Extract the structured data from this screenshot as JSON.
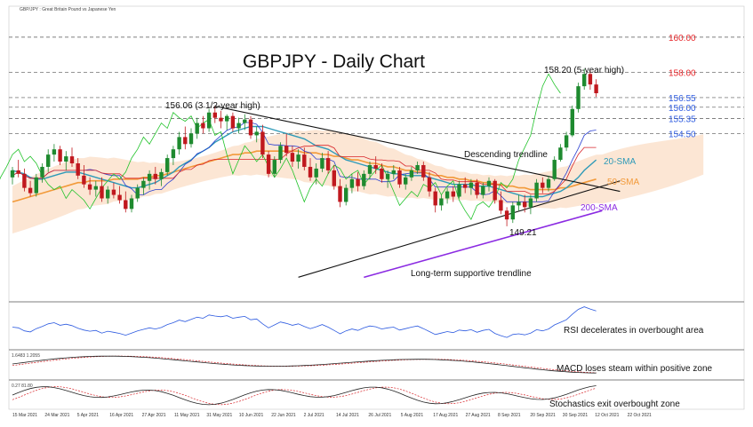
{
  "header": {
    "source_label": "GBP/JPY : Great Britain Pound vs Japanese Yen"
  },
  "chart_data": {
    "type": "candlestick",
    "title": "GBPJPY - Daily Chart",
    "ylim": [
      145.0,
      160.6
    ],
    "x": [
      "15 Mar 2021",
      "24 Mar 2021",
      "5 Apr 2021",
      "16 Apr 2021",
      "27 Apr 2021",
      "11 May 2021",
      "31 May 2021",
      "10 Jun 2021",
      "22 Jun 2021",
      "2 Jul 2021",
      "14 Jul 2021",
      "26 Jul 2021",
      "5 Aug 2021",
      "17 Aug 2021",
      "27 Aug 2021",
      "8 Sep 2021",
      "20 Sep 2021",
      "30 Sep 2021",
      "12 Oct 2021",
      "22 Oct 2021"
    ],
    "levels": [
      {
        "value": 160.0,
        "label": "160.00",
        "color": "#e8262a"
      },
      {
        "value": 158.0,
        "label": "158.00",
        "color": "#e8262a"
      },
      {
        "value": 156.55,
        "label": "156.55",
        "color": "#2c5ae0"
      },
      {
        "value": 156.0,
        "label": "156.00",
        "color": "#2c5ae0"
      },
      {
        "value": 155.35,
        "label": "155.35",
        "color": "#2c5ae0"
      },
      {
        "value": 154.5,
        "label": "154.50",
        "color": "#2c5ae0"
      }
    ],
    "series": [
      {
        "name": "20-SMA",
        "color": "#2e9ab8"
      },
      {
        "name": "50-SMA",
        "color": "#f29a3a"
      },
      {
        "name": "200-SMA",
        "color": "#8b2be2"
      }
    ],
    "annotations": [
      {
        "text": "158.20 (5-year high)"
      },
      {
        "text": "156.06 (3 1/2-year high)"
      },
      {
        "text": "Descending trendline"
      },
      {
        "text": "149.21"
      },
      {
        "text": "Long-term supportive trendline"
      }
    ],
    "candles": [
      [
        152.0,
        152.6,
        151.6,
        152.4
      ],
      [
        152.4,
        153.0,
        152.0,
        152.2
      ],
      [
        152.2,
        152.5,
        151.2,
        151.4
      ],
      [
        151.4,
        151.8,
        150.9,
        151.1
      ],
      [
        151.1,
        152.2,
        150.9,
        152.0
      ],
      [
        152.0,
        152.8,
        151.7,
        152.6
      ],
      [
        152.6,
        153.6,
        152.3,
        153.3
      ],
      [
        153.3,
        153.9,
        152.9,
        153.6
      ],
      [
        153.6,
        153.8,
        152.7,
        152.9
      ],
      [
        152.9,
        153.5,
        152.4,
        153.2
      ],
      [
        153.2,
        153.7,
        152.6,
        152.8
      ],
      [
        152.8,
        153.1,
        151.9,
        152.1
      ],
      [
        152.1,
        152.7,
        151.4,
        151.6
      ],
      [
        151.6,
        152.0,
        151.0,
        151.3
      ],
      [
        151.3,
        151.8,
        150.9,
        151.5
      ],
      [
        151.5,
        152.0,
        150.6,
        150.8
      ],
      [
        150.8,
        151.5,
        150.5,
        151.3
      ],
      [
        151.3,
        151.7,
        150.8,
        151.0
      ],
      [
        151.0,
        151.5,
        150.5,
        150.7
      ],
      [
        150.7,
        151.2,
        150.0,
        150.2
      ],
      [
        150.2,
        151.0,
        150.0,
        150.8
      ],
      [
        150.8,
        151.6,
        150.6,
        151.4
      ],
      [
        151.4,
        152.0,
        151.0,
        151.8
      ],
      [
        151.8,
        152.4,
        151.3,
        152.2
      ],
      [
        152.2,
        152.6,
        151.6,
        151.9
      ],
      [
        151.9,
        152.5,
        151.5,
        152.3
      ],
      [
        152.3,
        153.3,
        152.1,
        153.1
      ],
      [
        153.1,
        153.8,
        152.7,
        153.6
      ],
      [
        153.6,
        154.6,
        153.3,
        154.3
      ],
      [
        154.3,
        154.9,
        153.6,
        153.9
      ],
      [
        153.9,
        154.8,
        153.7,
        154.5
      ],
      [
        154.5,
        155.4,
        154.2,
        155.1
      ],
      [
        155.1,
        155.5,
        154.5,
        154.8
      ],
      [
        154.8,
        155.9,
        154.6,
        155.7
      ],
      [
        155.7,
        156.06,
        155.1,
        155.4
      ],
      [
        155.4,
        155.8,
        154.8,
        155.2
      ],
      [
        155.2,
        155.6,
        154.7,
        155.5
      ],
      [
        155.5,
        155.7,
        154.6,
        154.8
      ],
      [
        154.8,
        155.4,
        154.5,
        155.1
      ],
      [
        155.1,
        155.6,
        154.7,
        155.3
      ],
      [
        155.3,
        155.5,
        154.2,
        154.4
      ],
      [
        154.4,
        154.9,
        154.0,
        154.6
      ],
      [
        154.6,
        155.0,
        153.1,
        153.3
      ],
      [
        153.3,
        153.5,
        152.0,
        152.2
      ],
      [
        152.2,
        153.2,
        152.0,
        153.0
      ],
      [
        153.0,
        154.0,
        152.8,
        153.8
      ],
      [
        153.8,
        154.5,
        153.2,
        153.4
      ],
      [
        153.4,
        153.8,
        152.6,
        152.9
      ],
      [
        152.9,
        153.6,
        152.5,
        153.3
      ],
      [
        153.3,
        153.7,
        152.4,
        152.6
      ],
      [
        152.6,
        153.1,
        151.8,
        152.0
      ],
      [
        152.0,
        152.8,
        151.6,
        152.5
      ],
      [
        152.5,
        153.4,
        152.3,
        153.1
      ],
      [
        153.1,
        153.5,
        152.2,
        152.4
      ],
      [
        152.4,
        152.7,
        151.3,
        151.5
      ],
      [
        151.5,
        151.9,
        150.3,
        150.6
      ],
      [
        150.6,
        151.6,
        150.4,
        151.4
      ],
      [
        151.4,
        152.2,
        151.1,
        151.9
      ],
      [
        151.9,
        152.3,
        151.2,
        151.5
      ],
      [
        151.5,
        152.4,
        151.3,
        152.2
      ],
      [
        152.2,
        152.9,
        151.9,
        152.7
      ],
      [
        152.7,
        153.2,
        152.2,
        152.5
      ],
      [
        152.5,
        152.8,
        151.7,
        151.9
      ],
      [
        151.9,
        152.4,
        151.4,
        152.2
      ],
      [
        152.2,
        152.7,
        151.9,
        152.4
      ],
      [
        152.4,
        152.6,
        151.4,
        151.6
      ],
      [
        151.6,
        152.2,
        151.3,
        152.0
      ],
      [
        152.0,
        152.6,
        151.8,
        152.4
      ],
      [
        152.4,
        152.9,
        152.2,
        152.7
      ],
      [
        152.7,
        152.9,
        151.8,
        152.0
      ],
      [
        152.0,
        152.3,
        150.9,
        151.2
      ],
      [
        151.2,
        151.4,
        150.0,
        150.4
      ],
      [
        150.4,
        151.0,
        150.1,
        150.8
      ],
      [
        150.8,
        151.4,
        150.5,
        151.2
      ],
      [
        151.2,
        151.5,
        150.6,
        150.9
      ],
      [
        150.9,
        151.8,
        150.8,
        151.6
      ],
      [
        151.6,
        152.0,
        151.1,
        151.4
      ],
      [
        151.4,
        151.9,
        151.0,
        151.7
      ],
      [
        151.7,
        151.9,
        150.8,
        151.0
      ],
      [
        151.0,
        151.7,
        150.8,
        151.5
      ],
      [
        151.5,
        152.0,
        151.2,
        151.8
      ],
      [
        151.8,
        151.9,
        150.5,
        150.7
      ],
      [
        150.7,
        151.2,
        149.9,
        150.1
      ],
      [
        150.1,
        150.3,
        149.21,
        149.6
      ],
      [
        149.6,
        150.6,
        149.4,
        150.4
      ],
      [
        150.4,
        151.0,
        150.1,
        150.6
      ],
      [
        150.6,
        151.0,
        150.0,
        150.3
      ],
      [
        150.3,
        151.0,
        149.9,
        150.8
      ],
      [
        150.8,
        151.9,
        150.6,
        151.7
      ],
      [
        151.7,
        152.0,
        151.1,
        151.4
      ],
      [
        151.4,
        152.1,
        151.2,
        151.9
      ],
      [
        151.9,
        153.2,
        151.8,
        153.0
      ],
      [
        153.0,
        153.9,
        152.9,
        153.7
      ],
      [
        153.7,
        154.6,
        153.5,
        154.4
      ],
      [
        154.4,
        156.1,
        154.3,
        155.9
      ],
      [
        155.9,
        157.4,
        155.7,
        157.2
      ],
      [
        157.2,
        158.2,
        157.0,
        157.9
      ],
      [
        157.9,
        158.1,
        157.0,
        157.3
      ],
      [
        157.3,
        157.6,
        156.6,
        156.8
      ]
    ],
    "sma20": [
      152.4,
      152.3,
      152.2,
      152.0,
      151.9,
      151.9,
      152.0,
      152.1,
      152.2,
      152.3,
      152.3,
      152.3,
      152.2,
      152.1,
      152.0,
      151.9,
      151.8,
      151.7,
      151.6,
      151.5,
      151.4,
      151.4,
      151.5,
      151.6,
      151.7,
      151.9,
      152.1,
      152.3,
      152.6,
      152.8,
      153.0,
      153.3,
      153.5,
      153.7,
      154.0,
      154.2,
      154.4,
      154.6,
      154.7,
      154.8,
      154.9,
      154.9,
      154.9,
      154.8,
      154.7,
      154.6,
      154.5,
      154.4,
      154.3,
      154.2,
      154.0,
      153.8,
      153.7,
      153.6,
      153.4,
      153.2,
      153.0,
      152.9,
      152.8,
      152.7,
      152.6,
      152.5,
      152.4,
      152.3,
      152.2,
      152.2,
      152.1,
      152.1,
      152.1,
      152.1,
      152.0,
      151.9,
      151.8,
      151.7,
      151.6,
      151.6,
      151.6,
      151.6,
      151.5,
      151.5,
      151.5,
      151.4,
      151.3,
      151.2,
      151.1,
      151.0,
      150.9,
      150.9,
      150.9,
      150.9,
      151.0,
      151.1,
      151.2,
      151.4,
      151.7,
      152.0,
      152.4,
      152.7,
      153.0
    ],
    "sma50": [
      150.6,
      150.7,
      150.8,
      150.9,
      151.0,
      151.1,
      151.2,
      151.3,
      151.4,
      151.5,
      151.6,
      151.7,
      151.7,
      151.8,
      151.8,
      151.8,
      151.8,
      151.9,
      151.9,
      151.9,
      151.9,
      151.9,
      152.0,
      152.0,
      152.1,
      152.1,
      152.2,
      152.3,
      152.4,
      152.5,
      152.6,
      152.7,
      152.8,
      152.9,
      153.0,
      153.1,
      153.2,
      153.3,
      153.3,
      153.4,
      153.4,
      153.5,
      153.5,
      153.5,
      153.5,
      153.5,
      153.5,
      153.5,
      153.5,
      153.4,
      153.4,
      153.4,
      153.3,
      153.3,
      153.2,
      153.2,
      153.1,
      153.0,
      153.0,
      152.9,
      152.8,
      152.8,
      152.7,
      152.6,
      152.6,
      152.5,
      152.4,
      152.4,
      152.3,
      152.3,
      152.2,
      152.1,
      152.1,
      152.0,
      152.0,
      151.9,
      151.9,
      151.8,
      151.8,
      151.7,
      151.7,
      151.6,
      151.6,
      151.5,
      151.5,
      151.4,
      151.4,
      151.3,
      151.3,
      151.3,
      151.3,
      151.3,
      151.4,
      151.4,
      151.5,
      151.6,
      151.7,
      151.8,
      151.9
    ],
    "sma200": {
      "start": [
        59,
        146.3
      ],
      "end": [
        99,
        150.1
      ]
    },
    "trendline_desc": {
      "start": [
        34,
        156.06
      ],
      "end": [
        102,
        151.2
      ]
    },
    "trendline_support": {
      "start": [
        48,
        146.3
      ],
      "end": [
        102,
        151.8
      ]
    }
  },
  "indicators": [
    {
      "name": "RSI",
      "note": "RSI decelerates in overbought area"
    },
    {
      "name": "MACD",
      "scale": "1.6483 1.2055",
      "note": "MACD loses steam within positive zone"
    },
    {
      "name": "Stochastics",
      "scale": "0.27 81.80",
      "note": "Stochastics exit overbought zone"
    }
  ],
  "colors": {
    "bull": "#1e8a2f",
    "bear": "#c0181e",
    "cloud": "#f5a566",
    "tenkan": "#2a3fd1",
    "kijun": "#d8252a",
    "lagging": "#22c32b"
  }
}
